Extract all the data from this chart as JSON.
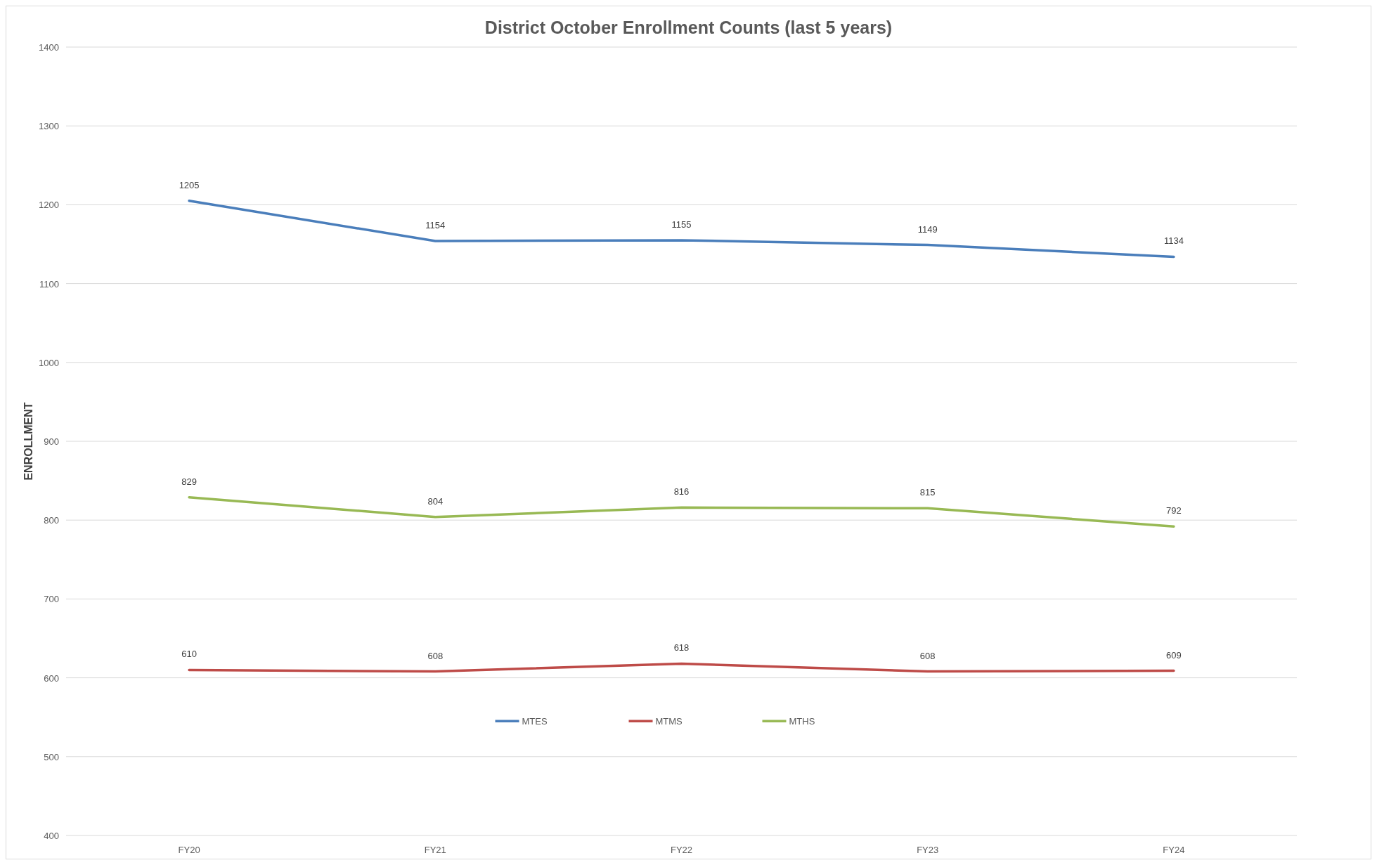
{
  "chart_data": {
    "type": "line",
    "title": "District October Enrollment Counts (last 5 years)",
    "ylabel": "ENROLLMENT",
    "categories": [
      "FY20",
      "FY21",
      "FY22",
      "FY23",
      "FY24"
    ],
    "series": [
      {
        "name": "MTES",
        "color": "#4a7ebb",
        "values": [
          1205,
          1154,
          1155,
          1149,
          1134
        ]
      },
      {
        "name": "MTMS",
        "color": "#be4b48",
        "values": [
          610,
          608,
          618,
          608,
          609
        ]
      },
      {
        "name": "MTHS",
        "color": "#98b954",
        "values": [
          829,
          804,
          816,
          815,
          792
        ]
      }
    ],
    "ylim": [
      400,
      1400
    ],
    "yticks": [
      400,
      500,
      600,
      700,
      800,
      900,
      1000,
      1100,
      1200,
      1300,
      1400
    ],
    "grid": "y",
    "legend": "bottom",
    "data_labels": true,
    "marker": "none",
    "line_style": "solid"
  }
}
